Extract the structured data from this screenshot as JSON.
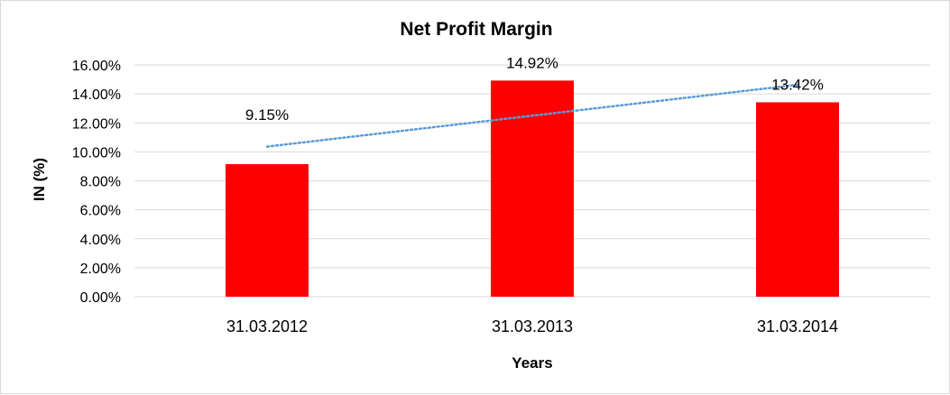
{
  "chart_data": {
    "type": "bar",
    "title": "Net Profit Margin",
    "xlabel": "Years",
    "ylabel": "IN (%)",
    "categories": [
      "31.03.2012",
      "31.03.2013",
      "31.03.2014"
    ],
    "values": [
      9.15,
      14.92,
      13.42
    ],
    "value_labels": [
      "9.15%",
      "14.92%",
      "13.42%"
    ],
    "ylim": [
      0,
      16
    ],
    "y_ticks": [
      0,
      2,
      4,
      6,
      8,
      10,
      12,
      14,
      16
    ],
    "y_tick_labels": [
      "0.00%",
      "2.00%",
      "4.00%",
      "6.00%",
      "8.00%",
      "10.00%",
      "12.00%",
      "14.00%",
      "16.00%"
    ],
    "grid": true,
    "legend": "none",
    "trendline": {
      "type": "linear",
      "style": "dotted",
      "color": "#5b9bd5"
    },
    "bar_color": "#ff0000",
    "grid_color": "#d9d9d9"
  }
}
